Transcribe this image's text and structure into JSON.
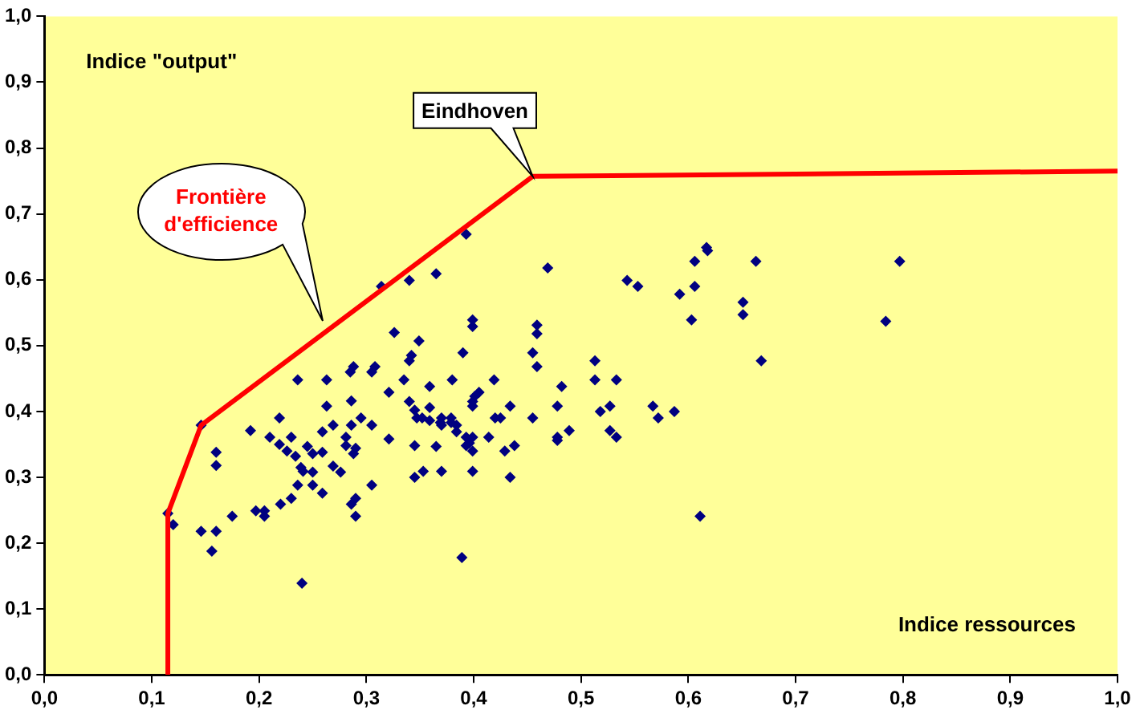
{
  "chart_data": {
    "type": "scatter",
    "xlabel": "Indice ressources",
    "ylabel": "Indice \"output\"",
    "xlim": [
      0,
      1
    ],
    "ylim": [
      0,
      1
    ],
    "xticks": [
      {
        "value": 0,
        "label": "0,0"
      },
      {
        "value": 0.1,
        "label": "0,1"
      },
      {
        "value": 0.2,
        "label": "0,2"
      },
      {
        "value": 0.3,
        "label": "0,3"
      },
      {
        "value": 0.4,
        "label": "0,4"
      },
      {
        "value": 0.5,
        "label": "0,5"
      },
      {
        "value": 0.6,
        "label": "0,6"
      },
      {
        "value": 0.7,
        "label": "0,7"
      },
      {
        "value": 0.8,
        "label": "0,8"
      },
      {
        "value": 0.9,
        "label": "0,9"
      },
      {
        "value": 1,
        "label": "1,0"
      }
    ],
    "yticks": [
      {
        "value": 0,
        "label": "0,0"
      },
      {
        "value": 0.1,
        "label": "0,1"
      },
      {
        "value": 0.2,
        "label": "0,2"
      },
      {
        "value": 0.3,
        "label": "0,3"
      },
      {
        "value": 0.4,
        "label": "0,4"
      },
      {
        "value": 0.5,
        "label": "0,5"
      },
      {
        "value": 0.6,
        "label": "0,6"
      },
      {
        "value": 0.7,
        "label": "0,7"
      },
      {
        "value": 0.8,
        "label": "0,8"
      },
      {
        "value": 0.9,
        "label": "0,9"
      },
      {
        "value": 1,
        "label": "1,0"
      }
    ],
    "grid": false,
    "legend": false,
    "marker": "diamond",
    "series": [
      {
        "type": "scatter",
        "color": "#000080",
        "x": [
          0.146,
          0.314,
          0.34,
          0.365,
          0.326,
          0.349,
          0.342,
          0.34,
          0.288,
          0.285,
          0.308,
          0.305,
          0.236,
          0.263,
          0.335,
          0.359,
          0.321,
          0.286,
          0.263,
          0.34,
          0.345,
          0.352,
          0.347,
          0.359,
          0.369,
          0.379,
          0.359,
          0.219,
          0.192,
          0.21,
          0.23,
          0.219,
          0.226,
          0.234,
          0.245,
          0.25,
          0.259,
          0.239,
          0.241,
          0.25,
          0.269,
          0.276,
          0.259,
          0.269,
          0.286,
          0.305,
          0.295,
          0.281,
          0.281,
          0.29,
          0.288,
          0.321,
          0.345,
          0.365,
          0.236,
          0.25,
          0.259,
          0.23,
          0.22,
          0.305,
          0.345,
          0.353,
          0.37,
          0.29,
          0.286,
          0.29,
          0.197,
          0.205,
          0.205,
          0.175,
          0.16,
          0.16,
          0.12,
          0.115,
          0.146,
          0.16,
          0.156,
          0.24,
          0.393,
          0.469,
          0.617,
          0.618,
          0.606,
          0.543,
          0.553,
          0.606,
          0.592,
          0.603,
          0.399,
          0.399,
          0.459,
          0.459,
          0.39,
          0.455,
          0.459,
          0.513,
          0.513,
          0.533,
          0.38,
          0.419,
          0.482,
          0.405,
          0.401,
          0.399,
          0.399,
          0.434,
          0.478,
          0.527,
          0.518,
          0.567,
          0.572,
          0.587,
          0.37,
          0.379,
          0.37,
          0.384,
          0.384,
          0.42,
          0.425,
          0.455,
          0.393,
          0.399,
          0.393,
          0.399,
          0.396,
          0.414,
          0.438,
          0.429,
          0.478,
          0.478,
          0.489,
          0.527,
          0.533,
          0.399,
          0.434,
          0.611,
          0.389,
          0.663,
          0.797,
          0.651,
          0.651,
          0.784,
          0.668
        ],
        "values": [
          0.379,
          0.59,
          0.599,
          0.609,
          0.52,
          0.507,
          0.485,
          0.477,
          0.468,
          0.46,
          0.468,
          0.46,
          0.448,
          0.448,
          0.448,
          0.438,
          0.429,
          0.416,
          0.408,
          0.415,
          0.402,
          0.39,
          0.39,
          0.386,
          0.383,
          0.383,
          0.406,
          0.39,
          0.371,
          0.361,
          0.361,
          0.35,
          0.34,
          0.332,
          0.347,
          0.336,
          0.338,
          0.315,
          0.309,
          0.308,
          0.317,
          0.308,
          0.369,
          0.379,
          0.379,
          0.379,
          0.39,
          0.361,
          0.348,
          0.344,
          0.336,
          0.358,
          0.348,
          0.347,
          0.288,
          0.288,
          0.276,
          0.268,
          0.259,
          0.288,
          0.3,
          0.309,
          0.309,
          0.268,
          0.259,
          0.241,
          0.249,
          0.249,
          0.241,
          0.241,
          0.338,
          0.318,
          0.228,
          0.245,
          0.218,
          0.218,
          0.188,
          0.139,
          0.669,
          0.618,
          0.649,
          0.644,
          0.628,
          0.599,
          0.59,
          0.59,
          0.578,
          0.539,
          0.539,
          0.529,
          0.531,
          0.518,
          0.489,
          0.489,
          0.468,
          0.477,
          0.448,
          0.448,
          0.448,
          0.448,
          0.438,
          0.429,
          0.423,
          0.415,
          0.408,
          0.408,
          0.408,
          0.408,
          0.4,
          0.408,
          0.39,
          0.4,
          0.39,
          0.39,
          0.379,
          0.379,
          0.369,
          0.39,
          0.39,
          0.39,
          0.361,
          0.361,
          0.348,
          0.34,
          0.352,
          0.361,
          0.348,
          0.34,
          0.361,
          0.356,
          0.371,
          0.371,
          0.361,
          0.309,
          0.3,
          0.241,
          0.178,
          0.628,
          0.628,
          0.566,
          0.547,
          0.537,
          0.477
        ]
      },
      {
        "type": "line",
        "color": "#ff0000",
        "marker": "none",
        "x": [
          0.115,
          0.115,
          0.146,
          0.455,
          1
        ],
        "values": [
          0,
          0.245,
          0.379,
          0.757,
          0.765
        ]
      }
    ],
    "annotations": [
      "Frontière d'efficience",
      {
        "text": "Eindhoven",
        "x": 0.455,
        "y": 0.757
      }
    ]
  }
}
